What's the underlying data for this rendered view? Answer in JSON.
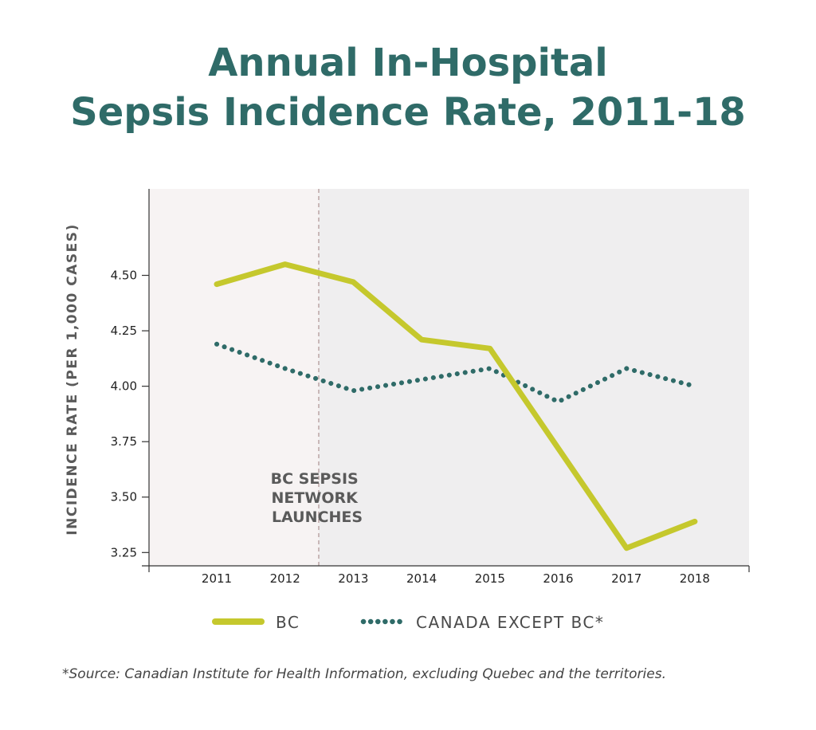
{
  "chart_data": {
    "type": "line",
    "title": [
      "Annual In-Hospital",
      "Sepsis Incidence Rate, 2011-18"
    ],
    "ylabel": "INCIDENCE RATE (PER 1,000 CASES)",
    "xlabel": "",
    "categories": [
      "2011",
      "2012",
      "2013",
      "2014",
      "2015",
      "2016",
      "2017",
      "2018"
    ],
    "yticks": [
      "4.50",
      "4.25",
      "4.00",
      "3.75",
      "3.50",
      "3.25"
    ],
    "ylim": [
      3.19,
      4.89
    ],
    "series": [
      {
        "name": "BC",
        "style": "solid",
        "color": "#c5c82d",
        "values": [
          4.46,
          4.55,
          4.47,
          4.21,
          4.17,
          3.72,
          3.27,
          3.39
        ]
      },
      {
        "name": "CANADA EXCEPT BC*",
        "style": "dotted",
        "color": "#2f6b68",
        "values": [
          4.19,
          4.08,
          3.98,
          4.03,
          4.08,
          3.93,
          4.08,
          4.0
        ]
      }
    ],
    "annotation": {
      "lines": [
        "BC SEPSIS",
        "NETWORK",
        "LAUNCHES"
      ],
      "x_between": [
        "2012",
        "2013"
      ]
    },
    "colors": {
      "title": "#2f6b68",
      "shade_before": "#f7f3f3",
      "shade_after": "#efeeef",
      "marker": "#b39a9a"
    }
  },
  "legend": {
    "bc": "BC",
    "canada": "CANADA EXCEPT BC*"
  },
  "source": "*Source: Canadian Institute for Health Information, excluding Quebec and the territories."
}
